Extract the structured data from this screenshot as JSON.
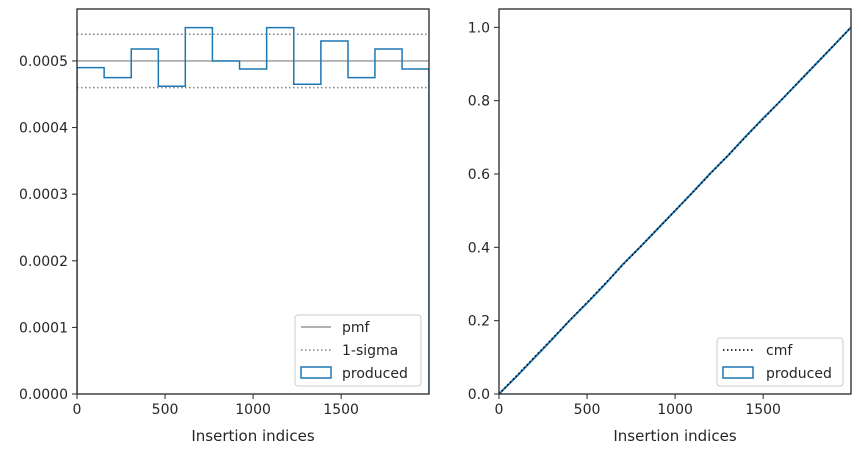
{
  "chart_data": [
    {
      "type": "line",
      "panel": "left",
      "xlabel": "Insertion indices",
      "ylabel": "",
      "xlim": [
        0,
        1999
      ],
      "ylim": [
        0,
        0.000578
      ],
      "xticks": [
        0,
        500,
        1000,
        1500
      ],
      "xtick_labels": [
        "0",
        "500",
        "1000",
        "1500"
      ],
      "yticks": [
        0,
        0.0001,
        0.0002,
        0.0003,
        0.0004,
        0.0005
      ],
      "ytick_labels": [
        "0.0000",
        "0.0001",
        "0.0002",
        "0.0003",
        "0.0004",
        "0.0005"
      ],
      "grid": false,
      "legend": {
        "position": "lower right",
        "entries": [
          "pmf",
          "1-sigma",
          "produced"
        ]
      },
      "pmf": {
        "name": "pmf",
        "y": 0.0005,
        "color": "#808080"
      },
      "sigma": {
        "name": "1-sigma",
        "upper": 0.00054,
        "lower": 0.00046,
        "color": "#808080"
      },
      "produced": {
        "name": "produced",
        "color": "#1f77b4",
        "bin_edges": [
          0,
          154,
          308,
          462,
          615,
          769,
          923,
          1077,
          1231,
          1385,
          1539,
          1692,
          1846,
          1999
        ],
        "values": [
          0.00049,
          0.000475,
          0.000518,
          0.000462,
          0.00055,
          0.0005,
          0.000488,
          0.00055,
          0.000465,
          0.00053,
          0.000475,
          0.000518,
          0.000488
        ]
      }
    },
    {
      "type": "line",
      "panel": "right",
      "xlabel": "Insertion indices",
      "ylabel": "",
      "xlim": [
        0,
        1999
      ],
      "ylim": [
        0,
        1.05
      ],
      "xticks": [
        0,
        500,
        1000,
        1500
      ],
      "xtick_labels": [
        "0",
        "500",
        "1000",
        "1500"
      ],
      "yticks": [
        0,
        0.2,
        0.4,
        0.6,
        0.8,
        1.0
      ],
      "ytick_labels": [
        "0.0",
        "0.2",
        "0.4",
        "0.6",
        "0.8",
        "1.0"
      ],
      "grid": false,
      "legend": {
        "position": "lower right",
        "entries": [
          "cmf",
          "produced"
        ]
      },
      "cmf": {
        "name": "cmf",
        "x": [
          0,
          1999
        ],
        "y": [
          0,
          1.0
        ],
        "color": "#000000"
      },
      "produced": {
        "name": "produced",
        "color": "#1f77b4",
        "x": [
          0,
          100,
          200,
          300,
          400,
          500,
          600,
          700,
          800,
          900,
          1000,
          1100,
          1200,
          1300,
          1400,
          1500,
          1600,
          1700,
          1800,
          1900,
          1999
        ],
        "y": [
          0,
          0.048,
          0.098,
          0.148,
          0.2,
          0.248,
          0.298,
          0.352,
          0.4,
          0.45,
          0.5,
          0.55,
          0.602,
          0.65,
          0.702,
          0.752,
          0.8,
          0.85,
          0.9,
          0.95,
          1.0
        ]
      }
    }
  ]
}
